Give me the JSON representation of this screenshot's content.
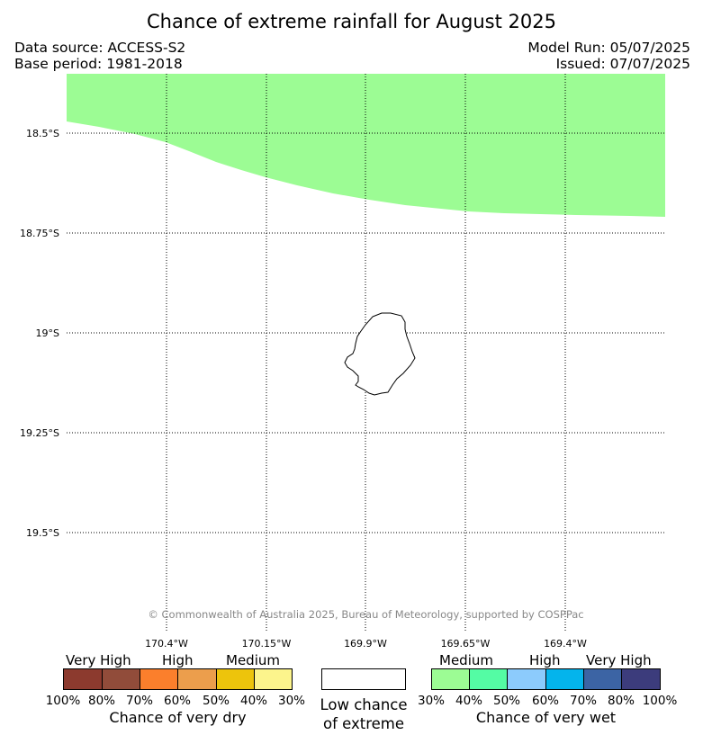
{
  "title": "Chance of extreme rainfall for August 2025",
  "data_source": "Data source: ACCESS-S2",
  "base_period": "Base period: 1981-2018",
  "model_run": "Model Run: 05/07/2025",
  "issued": "Issued: 07/07/2025",
  "lat_labels": [
    "18.5°S",
    "18.75°S",
    "19°S",
    "19.25°S",
    "19.5°S"
  ],
  "lon_labels": [
    "170.4°W",
    "170.15°W",
    "169.9°W",
    "169.65°W",
    "169.4°W"
  ],
  "copyright": "© Commonwealth of Australia 2025, Bureau of Meteorology, supported by COSPPac",
  "map_fill": {
    "category": "Medium chance of very wet",
    "range": "30%-40%",
    "color": "#9cfc94"
  },
  "dry_legend": {
    "categories": [
      "Very High",
      "High",
      "Medium"
    ],
    "colors": [
      "#8c3a2e",
      "#914c3a",
      "#fb7f2c",
      "#ec9e4c",
      "#edc40c",
      "#fcf48c"
    ],
    "percents": [
      "100%",
      "80%",
      "70%",
      "60%",
      "50%",
      "40%",
      "30%"
    ],
    "title": "Chance of very dry"
  },
  "low_legend": {
    "line1": "Low chance",
    "line2": "of extreme",
    "color": "#ffffff"
  },
  "wet_legend": {
    "categories": [
      "Medium",
      "High",
      "Very High"
    ],
    "colors": [
      "#9cfc94",
      "#54fca4",
      "#8ccbfc",
      "#04b4ec",
      "#3c64a4",
      "#3c3c7c"
    ],
    "percents": [
      "30%",
      "40%",
      "50%",
      "60%",
      "70%",
      "80%",
      "100%"
    ],
    "title": "Chance of very wet"
  }
}
